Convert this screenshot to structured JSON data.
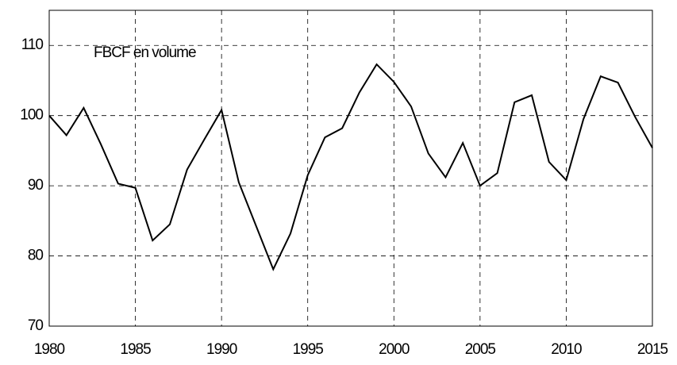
{
  "chart_data": {
    "type": "line",
    "annotation": "FBCF en volume",
    "x": [
      1980,
      1981,
      1982,
      1983,
      1984,
      1985,
      1986,
      1987,
      1988,
      1989,
      1990,
      1991,
      1992,
      1993,
      1994,
      1995,
      1996,
      1997,
      1998,
      1999,
      2000,
      2001,
      2002,
      2003,
      2004,
      2005,
      2006,
      2007,
      2008,
      2009,
      2010,
      2011,
      2012,
      2013,
      2014,
      2015
    ],
    "series": [
      {
        "color": "#000000",
        "values": [
          100,
          97.2,
          101.1,
          95.9,
          90.3,
          89.7,
          82.2,
          84.5,
          92.3,
          96.6,
          100.8,
          90.5,
          84.3,
          78.1,
          83.2,
          91.5,
          96.9,
          98.2,
          103.3,
          107.3,
          104.8,
          101.3,
          94.6,
          91.2,
          96.1,
          90.0,
          91.8,
          101.9,
          102.9,
          93.4,
          90.8,
          99.5,
          105.6,
          104.7,
          99.8,
          95.4
        ]
      }
    ],
    "xlim": [
      1980,
      2015
    ],
    "xticks": [
      1980,
      1985,
      1990,
      1995,
      2000,
      2005,
      2010,
      2015
    ],
    "ylim": [
      70,
      115
    ],
    "yticks": [
      70,
      80,
      90,
      100,
      110
    ],
    "grid": true
  }
}
